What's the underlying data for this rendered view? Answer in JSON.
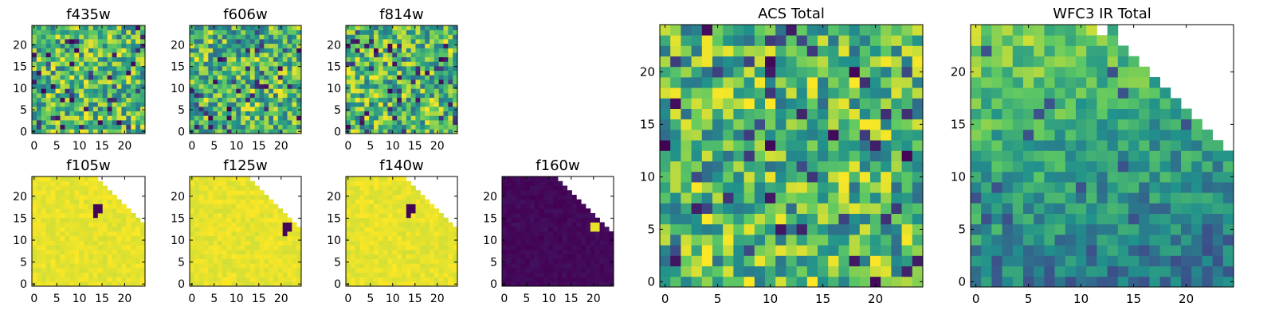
{
  "figure": {
    "colormap_colors": [
      "#440154",
      "#3b528b",
      "#21918c",
      "#5ec962",
      "#fde725"
    ]
  },
  "chart_data": [
    {
      "type": "heatmap",
      "title": "f435w",
      "grid_size": 24,
      "fill": "noise",
      "seed": 11,
      "xticks": [
        0,
        5,
        10,
        15,
        20
      ],
      "yticks": [
        0,
        5,
        10,
        15,
        20
      ],
      "xlim": [
        -0.5,
        24.5
      ],
      "ylim": [
        -0.5,
        24.5
      ],
      "value_range": [
        0,
        1
      ],
      "colormap": "viridis"
    },
    {
      "type": "heatmap",
      "title": "f606w",
      "grid_size": 24,
      "fill": "noise",
      "seed": 23,
      "xticks": [
        0,
        5,
        10,
        15,
        20
      ],
      "yticks": [
        0,
        5,
        10,
        15,
        20
      ],
      "xlim": [
        -0.5,
        24.5
      ],
      "ylim": [
        -0.5,
        24.5
      ],
      "value_range": [
        0,
        1
      ],
      "colormap": "viridis"
    },
    {
      "type": "heatmap",
      "title": "f814w",
      "grid_size": 24,
      "fill": "noise",
      "seed": 37,
      "xticks": [
        0,
        5,
        10,
        15,
        20
      ],
      "yticks": [
        0,
        5,
        10,
        15,
        20
      ],
      "xlim": [
        -0.5,
        24.5
      ],
      "ylim": [
        -0.5,
        24.5
      ],
      "value_range": [
        0,
        1
      ],
      "colormap": "viridis"
    },
    {
      "type": "heatmap",
      "title": "f105w",
      "grid_size": 24,
      "fill": "bright",
      "seed": 41,
      "xticks": [
        0,
        5,
        10,
        15,
        20
      ],
      "yticks": [
        0,
        5,
        10,
        15,
        20
      ],
      "xlim": [
        -0.5,
        24.5
      ],
      "ylim": [
        -0.5,
        24.5
      ],
      "value_range": [
        0,
        1
      ],
      "colormap": "viridis",
      "mask_edge": [
        [
          13,
          24
        ],
        [
          14,
          23
        ],
        [
          15,
          22
        ],
        [
          16,
          21
        ],
        [
          17,
          20
        ],
        [
          18,
          19
        ],
        [
          19,
          18
        ],
        [
          20,
          17
        ],
        [
          21,
          16
        ],
        [
          22,
          15
        ],
        [
          23,
          14
        ],
        [
          24,
          13
        ]
      ],
      "dark_pixels": [
        [
          13,
          17
        ],
        [
          14,
          17
        ],
        [
          13,
          16
        ],
        [
          14,
          16
        ],
        [
          13,
          15
        ]
      ]
    },
    {
      "type": "heatmap",
      "title": "f125w",
      "grid_size": 24,
      "fill": "bright",
      "seed": 53,
      "xticks": [
        0,
        5,
        10,
        15,
        20
      ],
      "yticks": [
        0,
        5,
        10,
        15,
        20
      ],
      "xlim": [
        -0.5,
        24.5
      ],
      "ylim": [
        -0.5,
        24.5
      ],
      "value_range": [
        0,
        1
      ],
      "colormap": "viridis",
      "mask_edge": [
        [
          12,
          24
        ],
        [
          13,
          23
        ],
        [
          14,
          22
        ],
        [
          15,
          21
        ],
        [
          16,
          20
        ],
        [
          17,
          19
        ],
        [
          18,
          18
        ],
        [
          19,
          17
        ],
        [
          20,
          16
        ],
        [
          21,
          15
        ],
        [
          22,
          14
        ],
        [
          23,
          13
        ],
        [
          24,
          13
        ]
      ],
      "dark_pixels": [
        [
          20,
          13
        ],
        [
          21,
          13
        ],
        [
          20,
          12
        ],
        [
          21,
          12
        ],
        [
          20,
          11
        ]
      ]
    },
    {
      "type": "heatmap",
      "title": "f140w",
      "grid_size": 24,
      "fill": "bright",
      "seed": 67,
      "xticks": [
        0,
        5,
        10,
        15,
        20
      ],
      "yticks": [
        0,
        5,
        10,
        15,
        20
      ],
      "xlim": [
        -0.5,
        24.5
      ],
      "ylim": [
        -0.5,
        24.5
      ],
      "value_range": [
        0,
        1
      ],
      "colormap": "viridis",
      "mask_edge": [
        [
          12,
          24
        ],
        [
          13,
          23
        ],
        [
          14,
          22
        ],
        [
          15,
          21
        ],
        [
          16,
          20
        ],
        [
          17,
          19
        ],
        [
          18,
          18
        ],
        [
          19,
          17
        ],
        [
          20,
          16
        ],
        [
          21,
          15
        ],
        [
          22,
          14
        ],
        [
          23,
          13
        ],
        [
          24,
          13
        ]
      ],
      "dark_pixels": [
        [
          13,
          17
        ],
        [
          14,
          17
        ],
        [
          13,
          16
        ],
        [
          14,
          16
        ],
        [
          13,
          15
        ]
      ]
    },
    {
      "type": "heatmap",
      "title": "f160w",
      "grid_size": 24,
      "fill": "dark",
      "seed": 79,
      "xticks": [
        0,
        5,
        10,
        15,
        20
      ],
      "yticks": [
        0,
        5,
        10,
        15,
        20
      ],
      "xlim": [
        -0.5,
        24.5
      ],
      "ylim": [
        -0.5,
        24.5
      ],
      "value_range": [
        0,
        1
      ],
      "colormap": "viridis",
      "mask_edge": [
        [
          11,
          24
        ],
        [
          12,
          23
        ],
        [
          13,
          22
        ],
        [
          14,
          21
        ],
        [
          15,
          20
        ],
        [
          16,
          19
        ],
        [
          17,
          18
        ],
        [
          18,
          17
        ],
        [
          19,
          16
        ],
        [
          20,
          15
        ],
        [
          21,
          14
        ],
        [
          22,
          13
        ],
        [
          23,
          12
        ],
        [
          24,
          12
        ]
      ],
      "bright_pixels": [
        [
          19,
          13
        ],
        [
          20,
          13
        ],
        [
          19,
          12
        ],
        [
          20,
          12
        ]
      ]
    },
    {
      "type": "heatmap",
      "title": "ACS Total",
      "grid_size": 25,
      "fill": "noise",
      "seed": 97,
      "xticks": [
        0,
        5,
        10,
        15,
        20
      ],
      "yticks": [
        0,
        5,
        10,
        15,
        20
      ],
      "xlim": [
        -0.5,
        24.5
      ],
      "ylim": [
        -0.5,
        24.5
      ],
      "value_range": [
        0,
        1
      ],
      "colormap": "viridis"
    },
    {
      "type": "heatmap",
      "title": "WFC3 IR Total",
      "grid_size": 25,
      "fill": "gradient",
      "seed": 113,
      "xticks": [
        0,
        5,
        10,
        15,
        20
      ],
      "yticks": [
        0,
        5,
        10,
        15,
        20
      ],
      "xlim": [
        -0.5,
        24.5
      ],
      "ylim": [
        -0.5,
        24.5
      ],
      "value_range": [
        0,
        1
      ],
      "colormap": "viridis",
      "mask_edge": [
        [
          11,
          25
        ],
        [
          12,
          24
        ],
        [
          14,
          23
        ],
        [
          15,
          22
        ],
        [
          16,
          21
        ],
        [
          17,
          20
        ],
        [
          18,
          19
        ],
        [
          19,
          18
        ],
        [
          20,
          17
        ],
        [
          21,
          16
        ],
        [
          22,
          15
        ],
        [
          23,
          14
        ],
        [
          24,
          13
        ],
        [
          25,
          12
        ]
      ]
    }
  ]
}
